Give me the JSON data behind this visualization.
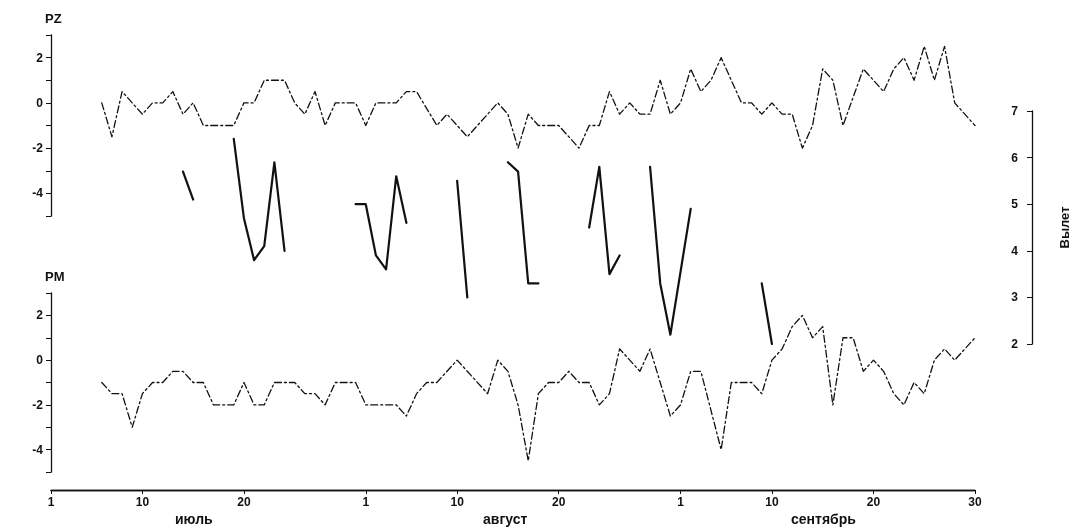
{
  "chart_data": [
    {
      "type": "line",
      "title": "PZ",
      "line_style": "dashed",
      "tick_labels": "y",
      "xlim": [
        "--07-01",
        "--09-30"
      ],
      "ylim": [
        -5,
        3
      ],
      "yticks": [
        {
          "value": -5,
          "label": null
        },
        -4,
        {
          "value": -3,
          "label": null
        },
        -2,
        {
          "value": -1,
          "label": null
        },
        0,
        {
          "value": 1,
          "label": null
        },
        2,
        {
          "value": 3,
          "label": null
        }
      ],
      "series": [
        {
          "color": "#111111",
          "x": [
            "--07-06",
            "--07-07",
            "--07-08",
            "--07-10",
            "--07-11",
            "--07-12",
            "--07-13",
            "--07-14",
            "--07-15",
            "--07-16",
            "--07-19",
            "--07-20",
            "--07-21",
            "--07-22",
            "--07-24",
            "--07-25",
            "--07-26",
            "--07-27",
            "--07-28",
            "--07-29",
            "--07-31",
            "--08-01",
            "--08-02",
            "--08-04",
            "--08-05",
            "--08-06",
            "--08-08",
            "--08-09",
            "--08-11",
            "--08-14",
            "--08-15",
            "--08-16",
            "--08-17",
            "--08-18",
            "--08-20",
            "--08-22",
            "--08-23",
            "--08-24",
            "--08-25",
            "--08-26",
            "--08-27",
            "--08-28",
            "--08-29",
            "--08-30",
            "--08-31",
            "--09-01",
            "--09-02",
            "--09-03",
            "--09-04",
            "--09-05",
            "--09-07",
            "--09-08",
            "--09-09",
            "--09-10",
            "--09-11",
            "--09-12",
            "--09-13",
            "--09-14",
            "--09-15",
            "--09-16",
            "--09-17",
            "--09-19",
            "--09-21",
            "--09-22",
            "--09-23",
            "--09-24",
            "--09-25",
            "--09-26",
            "--09-27",
            "--09-28",
            "--09-30"
          ],
          "values": [
            0,
            -1.5,
            0.5,
            -0.5,
            0,
            0,
            0.5,
            -0.5,
            0,
            -1,
            -1,
            0,
            0,
            1,
            1,
            0,
            -0.5,
            0.5,
            -1,
            0,
            0,
            -1,
            0,
            0,
            0.5,
            0.5,
            -1,
            -0.5,
            -1.5,
            0,
            -0.5,
            -2,
            -0.5,
            -1,
            -1,
            -2,
            -1,
            -1,
            0.5,
            -0.5,
            0,
            -0.5,
            -0.5,
            1,
            -0.5,
            0,
            1.5,
            0.5,
            1,
            2,
            0,
            0,
            -0.5,
            0,
            -0.5,
            -0.5,
            -2,
            -1,
            1.5,
            1,
            -1,
            1.5,
            0.5,
            1.5,
            2,
            1,
            2.5,
            1,
            2.5,
            0,
            -1
          ]
        }
      ]
    },
    {
      "type": "line",
      "title": "PM",
      "line_style": "dashed",
      "xlim": [
        "--07-01",
        "--09-30"
      ],
      "ylim": [
        -5,
        3
      ],
      "yticks": [
        {
          "value": -5,
          "label": null
        },
        -4,
        {
          "value": -3,
          "label": null
        },
        -2,
        {
          "value": -1,
          "label": null
        },
        0,
        {
          "value": 1,
          "label": null
        },
        2,
        {
          "value": 3,
          "label": null
        }
      ],
      "xticks": [
        {
          "value": "--07-01",
          "label": "1"
        },
        {
          "value": "--07-10",
          "label": "10"
        },
        {
          "value": "--07-20",
          "label": "20"
        },
        {
          "value": "--08-01",
          "label": "1"
        },
        {
          "value": "--08-10",
          "label": "10"
        },
        {
          "value": "--08-20",
          "label": "20"
        },
        {
          "value": "--09-01",
          "label": "1"
        },
        {
          "value": "--09-10",
          "label": "10"
        },
        {
          "value": "--09-20",
          "label": "20"
        },
        {
          "value": "--09-30",
          "label": "30"
        }
      ],
      "annotations": [
        "июль",
        "август",
        "сентябрь"
      ],
      "series": [
        {
          "color": "#111111",
          "x": [
            "--07-06",
            "--07-07",
            "--07-08",
            "--07-09",
            "--07-10",
            "--07-11",
            "--07-12",
            "--07-13",
            "--07-14",
            "--07-15",
            "--07-16",
            "--07-17",
            "--07-19",
            "--07-20",
            "--07-21",
            "--07-22",
            "--07-23",
            "--07-25",
            "--07-26",
            "--07-27",
            "--07-28",
            "--07-29",
            "--07-31",
            "--08-01",
            "--08-04",
            "--08-05",
            "--08-06",
            "--08-07",
            "--08-08",
            "--08-10",
            "--08-13",
            "--08-14",
            "--08-15",
            "--08-16",
            "--08-17",
            "--08-18",
            "--08-19",
            "--08-20",
            "--08-21",
            "--08-22",
            "--08-23",
            "--08-24",
            "--08-25",
            "--08-26",
            "--08-28",
            "--08-29",
            "--08-31",
            "--09-01",
            "--09-02",
            "--09-03",
            "--09-05",
            "--09-06",
            "--09-08",
            "--09-09",
            "--09-10",
            "--09-11",
            "--09-12",
            "--09-13",
            "--09-14",
            "--09-15",
            "--09-16",
            "--09-17",
            "--09-18",
            "--09-19",
            "--09-20",
            "--09-21",
            "--09-22",
            "--09-23",
            "--09-24",
            "--09-25",
            "--09-26",
            "--09-27",
            "--09-28",
            "--09-30"
          ],
          "values": [
            -1,
            -1.5,
            -1.5,
            -3,
            -1.5,
            -1,
            -1,
            -0.5,
            -0.5,
            -1,
            -1,
            -2,
            -2,
            -1,
            -2,
            -2,
            -1,
            -1,
            -1.5,
            -1.5,
            -2,
            -1,
            -1,
            -2,
            -2,
            -2.5,
            -1.5,
            -1,
            -1,
            0,
            -1.5,
            0,
            -0.5,
            -2,
            -4.5,
            -1.5,
            -1,
            -1,
            -0.5,
            -1,
            -1,
            -2,
            -1.5,
            0.5,
            -0.5,
            0.5,
            -2.5,
            -2,
            -0.5,
            -0.5,
            -4,
            -1,
            -1,
            -1.5,
            0,
            0.5,
            1.5,
            2,
            1,
            1.5,
            -2,
            1,
            1,
            -0.5,
            0,
            -0.5,
            -1.5,
            -2,
            -1,
            -1.5,
            0,
            0.5,
            0,
            1
          ]
        }
      ]
    },
    {
      "type": "line",
      "y2label": "Вылет",
      "line_style": "solid",
      "tick_labels": "y",
      "xlim": [
        "--07-01",
        "--09-30"
      ],
      "y2lim": [
        2,
        7
      ],
      "xticks": [
        {
          "value": "--07-01",
          "label": null
        },
        {
          "value": "--07-10",
          "label": null
        },
        {
          "value": "--07-20",
          "label": null
        },
        {
          "value": "--08-01",
          "label": null
        },
        {
          "value": "--08-10",
          "label": null
        },
        {
          "value": "--08-20",
          "label": null
        },
        {
          "value": "--09-01",
          "label": null
        },
        {
          "value": "--09-10",
          "label": null
        },
        {
          "value": "--09-20",
          "label": null
        },
        {
          "value": "--09-30",
          "label": null
        }
      ],
      "y2ticks": [
        2,
        3,
        4,
        5,
        6,
        7
      ],
      "series": [
        {
          "color": "#111111",
          "axis": "y2",
          "x": [
            "--07-14",
            "--07-15",
            "--07-16",
            "--07-19",
            "--07-20",
            "--07-21",
            "--07-22",
            "--07-23",
            "--07-24",
            "--07-25",
            "--07-31",
            "--08-01",
            "--08-02",
            "--08-03",
            "--08-04",
            "--08-05",
            "--08-06",
            "--08-10",
            "--08-11",
            "--08-12",
            "--08-15",
            "--08-16",
            "--08-17",
            "--08-18",
            "--08-19",
            "--08-23",
            "--08-24",
            "--08-25",
            "--08-26",
            "--08-27",
            "--08-29",
            "--08-30",
            "--08-31",
            "--09-02",
            "--09-03",
            "--09-09",
            "--09-10"
          ],
          "values": [
            5.7,
            5.1,
            null,
            6.4,
            4.7,
            3.8,
            4.1,
            5.9,
            4.0,
            null,
            5.0,
            5.0,
            3.9,
            3.6,
            5.6,
            4.6,
            null,
            5.5,
            3.0,
            null,
            5.9,
            5.7,
            3.3,
            3.3,
            null,
            4.5,
            5.8,
            3.5,
            3.9,
            null,
            5.8,
            3.3,
            2.2,
            4.9,
            null,
            3.3,
            2.0
          ]
        }
      ]
    }
  ]
}
